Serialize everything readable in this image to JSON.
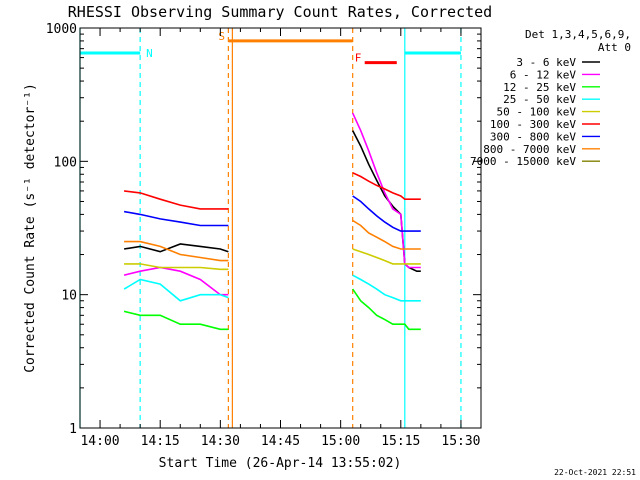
{
  "chart_data": {
    "type": "line",
    "title": "RHESSI Observing Summary Count Rates, Corrected",
    "xlabel": "Start Time (26-Apr-14 13:55:02)",
    "ylabel": "Corrected Count Rate (s⁻¹ detector⁻¹)",
    "yscale": "log",
    "ylim": [
      1,
      1000
    ],
    "xlim": [
      "13:55",
      "15:35"
    ],
    "x_ticks": [
      "14:00",
      "14:15",
      "14:30",
      "14:45",
      "15:00",
      "15:15",
      "15:30"
    ],
    "y_ticks": [
      "1",
      "10",
      "100",
      "1000"
    ],
    "legend_header": [
      "Det 1,3,4,5,6,9,",
      "Att 0"
    ],
    "legend_position": "right",
    "footer": "22-Oct-2021 22:51",
    "series": [
      {
        "name": "3 - 6 keV",
        "color": "#000000",
        "segments": [
          {
            "x": [
              "14:06",
              "14:10",
              "14:15",
              "14:20",
              "14:25",
              "14:30",
              "14:32"
            ],
            "y": [
              22,
              23,
              21,
              24,
              23,
              22,
              21
            ]
          },
          {
            "x": [
              "15:03",
              "15:05",
              "15:07",
              "15:09",
              "15:11",
              "15:13",
              "15:15",
              "15:16",
              "15:17",
              "15:19",
              "15:20"
            ],
            "y": [
              170,
              130,
              95,
              72,
              55,
              46,
              40,
              17,
              16,
              15,
              15
            ]
          }
        ]
      },
      {
        "name": "6 - 12 keV",
        "color": "#ff00ff",
        "segments": [
          {
            "x": [
              "14:06",
              "14:10",
              "14:15",
              "14:20",
              "14:25",
              "14:30",
              "14:32"
            ],
            "y": [
              14,
              15,
              16,
              15,
              13,
              10,
              10
            ]
          },
          {
            "x": [
              "15:03",
              "15:05",
              "15:07",
              "15:09",
              "15:11",
              "15:13",
              "15:15",
              "15:16",
              "15:17",
              "15:19",
              "15:20"
            ],
            "y": [
              230,
              170,
              120,
              82,
              58,
              44,
              40,
              17,
              16,
              16,
              16
            ]
          }
        ]
      },
      {
        "name": "12 - 25 keV",
        "color": "#00ff00",
        "segments": [
          {
            "x": [
              "14:06",
              "14:10",
              "14:15",
              "14:20",
              "14:25",
              "14:30",
              "14:32"
            ],
            "y": [
              7.5,
              7,
              7,
              6,
              6,
              5.5,
              5.5
            ]
          },
          {
            "x": [
              "15:03",
              "15:05",
              "15:07",
              "15:09",
              "15:11",
              "15:13",
              "15:15",
              "15:16",
              "15:17",
              "15:19",
              "15:20"
            ],
            "y": [
              11,
              9,
              8,
              7,
              6.5,
              6,
              6,
              6,
              5.5,
              5.5,
              5.5
            ]
          }
        ]
      },
      {
        "name": "25 - 50 keV",
        "color": "#00ffff",
        "segments": [
          {
            "x": [
              "14:06",
              "14:10",
              "14:15",
              "14:20",
              "14:25",
              "14:30",
              "14:32"
            ],
            "y": [
              11,
              13,
              12,
              9,
              10,
              10,
              9.5
            ]
          },
          {
            "x": [
              "15:03",
              "15:05",
              "15:07",
              "15:09",
              "15:11",
              "15:13",
              "15:15",
              "15:16",
              "15:17",
              "15:19",
              "15:20"
            ],
            "y": [
              14,
              13,
              12,
              11,
              10,
              9.5,
              9,
              9,
              9,
              9,
              9
            ]
          }
        ]
      },
      {
        "name": "50 - 100 keV",
        "color": "#cccc00",
        "segments": [
          {
            "x": [
              "14:06",
              "14:10",
              "14:15",
              "14:20",
              "14:25",
              "14:30",
              "14:32"
            ],
            "y": [
              17,
              17,
              16,
              16,
              16,
              15.5,
              15.5
            ]
          },
          {
            "x": [
              "15:03",
              "15:05",
              "15:07",
              "15:09",
              "15:11",
              "15:13",
              "15:15",
              "15:16",
              "15:17",
              "15:19",
              "15:20"
            ],
            "y": [
              22,
              21,
              20,
              19,
              18,
              17,
              17,
              17,
              17,
              17,
              17
            ]
          }
        ]
      },
      {
        "name": "100 - 300 keV",
        "color": "#ff0000",
        "segments": [
          {
            "x": [
              "14:06",
              "14:10",
              "14:15",
              "14:20",
              "14:25",
              "14:30",
              "14:32"
            ],
            "y": [
              60,
              58,
              52,
              47,
              44,
              44,
              44
            ]
          },
          {
            "x": [
              "15:03",
              "15:05",
              "15:07",
              "15:09",
              "15:11",
              "15:13",
              "15:15",
              "15:16",
              "15:17",
              "15:19",
              "15:20"
            ],
            "y": [
              82,
              77,
              71,
              66,
              62,
              58,
              55,
              52,
              52,
              52,
              52
            ]
          }
        ]
      },
      {
        "name": "300 - 800 keV",
        "color": "#0000ff",
        "segments": [
          {
            "x": [
              "14:06",
              "14:10",
              "14:15",
              "14:20",
              "14:25",
              "14:30",
              "14:32"
            ],
            "y": [
              42,
              40,
              37,
              35,
              33,
              33,
              33
            ]
          },
          {
            "x": [
              "15:03",
              "15:05",
              "15:07",
              "15:09",
              "15:11",
              "15:13",
              "15:15",
              "15:16",
              "15:17",
              "15:19",
              "15:20"
            ],
            "y": [
              55,
              50,
              44,
              39,
              35,
              32,
              30,
              30,
              30,
              30,
              30
            ]
          }
        ]
      },
      {
        "name": "800 - 7000 keV",
        "color": "#ff8000",
        "segments": [
          {
            "x": [
              "14:06",
              "14:10",
              "14:15",
              "14:20",
              "14:25",
              "14:30",
              "14:32"
            ],
            "y": [
              25,
              25,
              23,
              20,
              19,
              18,
              18
            ]
          },
          {
            "x": [
              "15:03",
              "15:05",
              "15:07",
              "15:09",
              "15:11",
              "15:13",
              "15:15",
              "15:16",
              "15:17",
              "15:19",
              "15:20"
            ],
            "y": [
              36,
              33,
              29,
              27,
              25,
              23,
              22,
              22,
              22,
              22,
              22
            ]
          }
        ]
      },
      {
        "name": "7000 - 15000 keV",
        "color": "#808000",
        "segments": []
      }
    ],
    "annotations": [
      {
        "label": "N",
        "color": "#00ffff",
        "type": "bar",
        "x": [
          "13:55",
          "14:10"
        ],
        "y": 650
      },
      {
        "label": "",
        "color": "#00ffff",
        "type": "bar",
        "x": [
          "15:16",
          "15:30"
        ],
        "y": 650
      },
      {
        "label": "S",
        "color": "#ff8000",
        "type": "bar",
        "x": [
          "14:32",
          "15:03"
        ],
        "y": 800
      },
      {
        "label": "F",
        "color": "#ff0000",
        "type": "bar",
        "x": [
          "15:06",
          "15:14"
        ],
        "y": 550
      }
    ],
    "vlines": [
      {
        "x": "13:55",
        "color": "#00ffff",
        "style": "solid"
      },
      {
        "x": "14:10",
        "color": "#00ffff",
        "style": "dashed"
      },
      {
        "x": "14:32",
        "color": "#ff8000",
        "style": "dashed"
      },
      {
        "x": "14:33",
        "color": "#ff8000",
        "style": "solid"
      },
      {
        "x": "15:03",
        "color": "#ff8000",
        "style": "dashed"
      },
      {
        "x": "15:16",
        "color": "#00ffff",
        "style": "solid"
      },
      {
        "x": "15:30",
        "color": "#00ffff",
        "style": "dashed"
      }
    ]
  }
}
